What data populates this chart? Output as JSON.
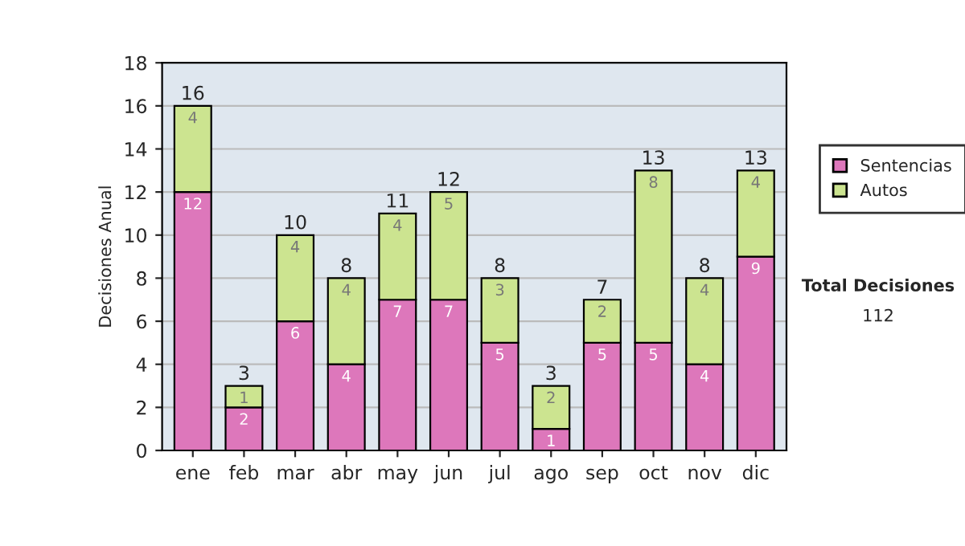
{
  "chart_data": {
    "type": "bar",
    "stacked": true,
    "ylabel": "Decisiones Anual",
    "categories": [
      "ene",
      "feb",
      "mar",
      "abr",
      "may",
      "jun",
      "jul",
      "ago",
      "sep",
      "oct",
      "nov",
      "dic"
    ],
    "series": [
      {
        "name": "Sentencias",
        "color": "#dd77bb",
        "values": [
          12,
          2,
          6,
          4,
          7,
          7,
          5,
          1,
          5,
          5,
          4,
          9
        ]
      },
      {
        "name": "Autos",
        "color": "#cce490",
        "values": [
          4,
          1,
          4,
          4,
          4,
          5,
          3,
          2,
          2,
          8,
          4,
          4
        ]
      }
    ],
    "totals": [
      "16",
      "3",
      "10",
      "8",
      "11",
      "12",
      "8",
      "3",
      "7",
      "13",
      "8",
      "13"
    ],
    "data_labels": true,
    "ylim": [
      0,
      18
    ],
    "yticks": [
      0,
      2,
      4,
      6,
      8,
      10,
      12,
      14,
      16,
      18
    ],
    "grid": "y",
    "legend": "right",
    "annotations": [
      "Total Decisiones",
      "112"
    ]
  }
}
